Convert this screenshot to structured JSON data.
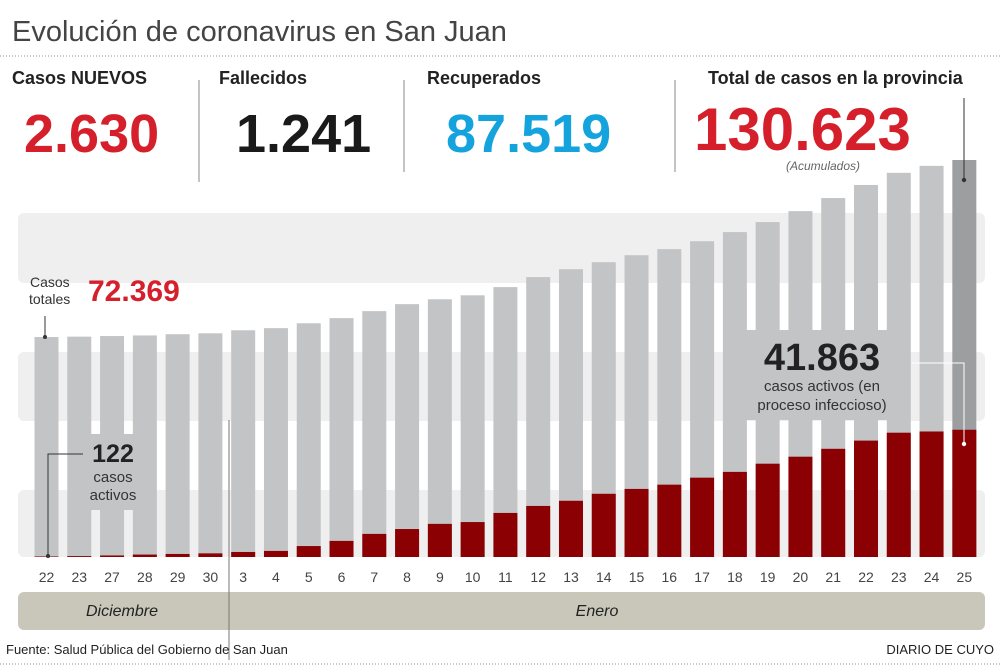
{
  "title": "Evolución de coronavirus en San Juan",
  "stats": [
    {
      "label": "Casos NUEVOS",
      "value": "2.630",
      "color": "#d51f2b"
    },
    {
      "label": "Fallecidos",
      "value": "1.241",
      "color": "#1a1a1a"
    },
    {
      "label": "Recuperados",
      "value": "87.519",
      "color": "#14a3dd"
    },
    {
      "label": "Total de casos en la provincia",
      "value": "130.623",
      "color": "#d51f2b",
      "note": "(Acumulados)"
    }
  ],
  "annotations": {
    "total_label_1": "Casos",
    "total_label_2": "totales",
    "total_value": "72.369",
    "start_active_value": "122",
    "start_active_1": "casos",
    "start_active_2": "activos",
    "end_active_value": "41.863",
    "end_active_1": "casos activos (en",
    "end_active_2": "proceso infeccioso)"
  },
  "months": [
    "Diciembre",
    "Enero"
  ],
  "footer": {
    "source": "Fuente: Salud Pública del Gobierno de San Juan",
    "brand": "DIARIO DE CUYO"
  },
  "chart_data": {
    "type": "bar",
    "stacked": "overlay",
    "categories": [
      "22",
      "23",
      "27",
      "28",
      "29",
      "30",
      "3",
      "4",
      "5",
      "6",
      "7",
      "8",
      "9",
      "10",
      "11",
      "12",
      "13",
      "14",
      "15",
      "16",
      "17",
      "18",
      "19",
      "20",
      "21",
      "22",
      "23",
      "24",
      "25"
    ],
    "month_groups": [
      {
        "name": "Diciembre",
        "count": 6
      },
      {
        "name": "Enero",
        "count": 23
      }
    ],
    "series": [
      {
        "name": "Casos totales",
        "color": "#c3c4c6",
        "highlight_color": "#9d9e9f",
        "values": [
          72369,
          72500,
          72700,
          72900,
          73300,
          73600,
          74600,
          75300,
          76900,
          78600,
          80900,
          83200,
          84800,
          86100,
          88800,
          92100,
          94700,
          97000,
          99300,
          101300,
          103900,
          106900,
          110200,
          113800,
          118100,
          122400,
          126400,
          128700,
          130623
        ]
      },
      {
        "name": "casos activos",
        "color": "#8b0003",
        "values": [
          122,
          300,
          500,
          800,
          1000,
          1200,
          1650,
          2000,
          3600,
          5300,
          7600,
          9200,
          10900,
          11500,
          14500,
          16800,
          18500,
          20800,
          22400,
          23800,
          26100,
          28000,
          30700,
          33000,
          35600,
          38300,
          40900,
          41300,
          41863
        ]
      }
    ],
    "ylim": [
      0,
      131000
    ],
    "grid": false
  }
}
